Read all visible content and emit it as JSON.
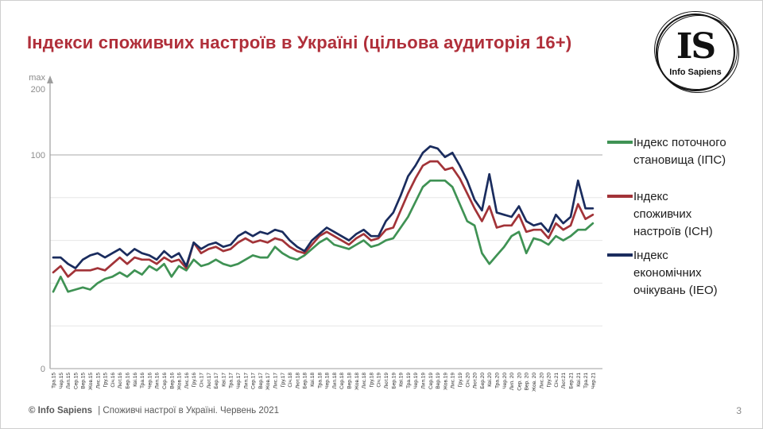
{
  "slide": {
    "title": "Індекси споживчих настроїв в Україні (цільова аудиторія 16+)",
    "page_number": "3",
    "footer": {
      "brand": "© Info Sapiens",
      "text": "| Споживчі настрої в Україні. Червень 2021"
    }
  },
  "logo": {
    "initials": "IS",
    "name": "Info Sapiens"
  },
  "axis": {
    "max_label": "max",
    "top_value": "200",
    "mid_value": "100",
    "zero_value": "0"
  },
  "legend": [
    {
      "label": "Індекс поточного\nстановища (ІПС)",
      "color": "#3f9254"
    },
    {
      "label": "Індекс\nспоживчих\nнастроїв (ІСН)",
      "color": "#a23338"
    },
    {
      "label": "Індекс\nекономічних\nочікувань (ІЕО)",
      "color": "#1a2c5e"
    }
  ],
  "chart_data": {
    "type": "line",
    "title": "Індекси споживчих настроїв в Україні (цільова аудиторія 16+)",
    "xlabel": "",
    "ylabel": "",
    "ylim": [
      0,
      200
    ],
    "y_axis_labels": [
      "max",
      "200",
      "100",
      "0"
    ],
    "y_gridlines": [
      20,
      40,
      60,
      80,
      100
    ],
    "grid": true,
    "legend_position": "right",
    "x_labels": [
      "Тра.15",
      "Чер.15",
      "Лип.15",
      "Сер.15",
      "Вер.15",
      "Жов.15",
      "Лис.15",
      "Гру.15",
      "Січ.16",
      "Лют.16",
      "Бер.16",
      "Кві.16",
      "Тра.16",
      "Чер.16",
      "Лип.16",
      "Сер.16",
      "Вер.16",
      "Жов.16",
      "Лис.16",
      "Гру.16",
      "Січ.17",
      "Лют.17",
      "Бер.17",
      "Кві.17",
      "Тра.17",
      "Чер.17",
      "Лип.17",
      "Сер.17",
      "Вер.17",
      "Жов.17",
      "Лис.17",
      "Гру.17",
      "Січ.18",
      "Лют.18",
      "Бер.18",
      "Кві.18",
      "Тра.18",
      "Чер.18",
      "Лип.18",
      "Сер.18",
      "Вер.18",
      "Жов.18",
      "Лис.18",
      "Гру.18",
      "Січ.19",
      "Лют.19",
      "Бер.19",
      "Кві.19",
      "Тра.19",
      "Чер.19",
      "Лип.19",
      "Сер.19",
      "Вер.19",
      "Жов.19",
      "Лис.19",
      "Гру.19",
      "Січ.20",
      "Лют.20",
      "Бер.20",
      "Кві.20",
      "Тра.20",
      "Чер.20",
      "Лип. 20",
      "Сер. 20",
      "Вер. 20",
      "Жов. 20",
      "Лис.20",
      "Гру.20",
      "Січ.21",
      "Лют.21",
      "Бер.21",
      "Кві.21",
      "Тра.21",
      "Чер.21"
    ],
    "series": [
      {
        "name": "Індекс поточного становища (ІПС)",
        "color": "#3f9254",
        "values": [
          36,
          43,
          36,
          37,
          38,
          37,
          40,
          42,
          43,
          45,
          43,
          46,
          44,
          48,
          46,
          49,
          43,
          48,
          46,
          51,
          48,
          49,
          51,
          49,
          48,
          49,
          51,
          53,
          52,
          52,
          57,
          54,
          52,
          51,
          53,
          56,
          59,
          61,
          58,
          57,
          56,
          58,
          60,
          57,
          58,
          60,
          61,
          66,
          71,
          78,
          85,
          88,
          88,
          88,
          85,
          77,
          69,
          67,
          54,
          49,
          53,
          57,
          62,
          64,
          54,
          61,
          60,
          58,
          62,
          60,
          62,
          65,
          65,
          68
        ]
      },
      {
        "name": "Індекс споживчих настроїв (ІСН)",
        "color": "#a23338",
        "values": [
          45,
          48,
          43,
          46,
          46,
          46,
          47,
          46,
          49,
          52,
          49,
          52,
          51,
          51,
          49,
          52,
          50,
          51,
          47,
          59,
          54,
          56,
          57,
          55,
          56,
          59,
          61,
          59,
          60,
          59,
          61,
          60,
          57,
          55,
          54,
          58,
          62,
          64,
          62,
          60,
          58,
          61,
          63,
          60,
          61,
          65,
          66,
          74,
          82,
          89,
          95,
          97,
          97,
          93,
          94,
          89,
          82,
          75,
          69,
          76,
          66,
          67,
          67,
          72,
          64,
          65,
          65,
          61,
          68,
          65,
          67,
          77,
          70,
          72
        ]
      },
      {
        "name": "Індекс економічних очікувань (ІЕО)",
        "color": "#1a2c5e",
        "values": [
          52,
          52,
          49,
          47,
          51,
          53,
          54,
          52,
          54,
          56,
          53,
          56,
          54,
          53,
          51,
          55,
          52,
          54,
          48,
          59,
          56,
          58,
          59,
          57,
          58,
          62,
          64,
          62,
          64,
          63,
          65,
          64,
          60,
          57,
          55,
          60,
          63,
          66,
          64,
          62,
          60,
          63,
          65,
          62,
          62,
          69,
          73,
          81,
          90,
          95,
          101,
          104,
          103,
          99,
          101,
          95,
          88,
          79,
          74,
          91,
          73,
          72,
          71,
          76,
          69,
          67,
          68,
          64,
          72,
          68,
          71,
          88,
          75,
          75
        ]
      }
    ]
  }
}
